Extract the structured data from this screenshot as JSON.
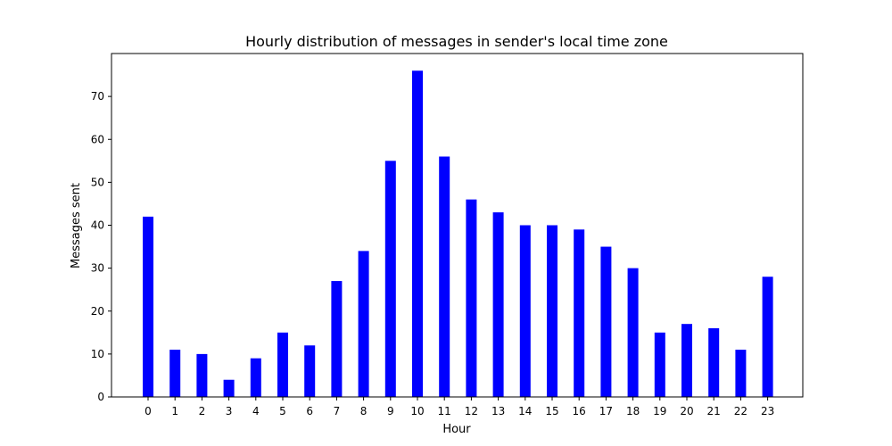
{
  "chart_data": {
    "type": "bar",
    "title": "Hourly distribution of messages in sender's local time zone",
    "xlabel": "Hour",
    "ylabel": "Messages sent",
    "categories": [
      "0",
      "1",
      "2",
      "3",
      "4",
      "5",
      "6",
      "7",
      "8",
      "9",
      "10",
      "11",
      "12",
      "13",
      "14",
      "15",
      "16",
      "17",
      "18",
      "19",
      "20",
      "21",
      "22",
      "23"
    ],
    "values": [
      42,
      11,
      10,
      4,
      9,
      15,
      12,
      27,
      34,
      55,
      76,
      56,
      46,
      43,
      40,
      40,
      39,
      35,
      30,
      15,
      17,
      16,
      11,
      28
    ],
    "ylim": [
      0,
      80
    ],
    "yticks": [
      0,
      10,
      20,
      30,
      40,
      50,
      60,
      70
    ],
    "grid": false,
    "bar_color": "#0000ff"
  }
}
